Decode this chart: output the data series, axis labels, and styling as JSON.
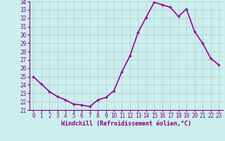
{
  "x": [
    0,
    1,
    2,
    3,
    4,
    5,
    6,
    7,
    8,
    9,
    10,
    11,
    12,
    13,
    14,
    15,
    16,
    17,
    18,
    19,
    20,
    21,
    22,
    23
  ],
  "y": [
    25.0,
    24.1,
    23.2,
    22.6,
    22.2,
    21.7,
    21.6,
    21.4,
    22.2,
    22.5,
    23.3,
    25.6,
    27.5,
    30.3,
    32.1,
    33.9,
    33.6,
    33.3,
    32.2,
    33.1,
    30.4,
    29.0,
    27.2,
    26.4
  ],
  "line_color": "#990099",
  "marker": "+",
  "marker_color": "#990099",
  "marker_size": 3,
  "marker_lw": 1.0,
  "xlabel": "Windchill (Refroidissement éolien,°C)",
  "ylim": [
    21,
    34
  ],
  "xlim": [
    -0.5,
    23.5
  ],
  "yticks": [
    21,
    22,
    23,
    24,
    25,
    26,
    27,
    28,
    29,
    30,
    31,
    32,
    33,
    34
  ],
  "xticks": [
    0,
    1,
    2,
    3,
    4,
    5,
    6,
    7,
    8,
    9,
    10,
    11,
    12,
    13,
    14,
    15,
    16,
    17,
    18,
    19,
    20,
    21,
    22,
    23
  ],
  "background_color": "#cceeed",
  "grid_color": "#aacccc",
  "label_color": "#880088",
  "tick_color": "#880088",
  "line_width": 1.2,
  "font_family": "monospace",
  "tick_fontsize": 5.5,
  "xlabel_fontsize": 6.0
}
